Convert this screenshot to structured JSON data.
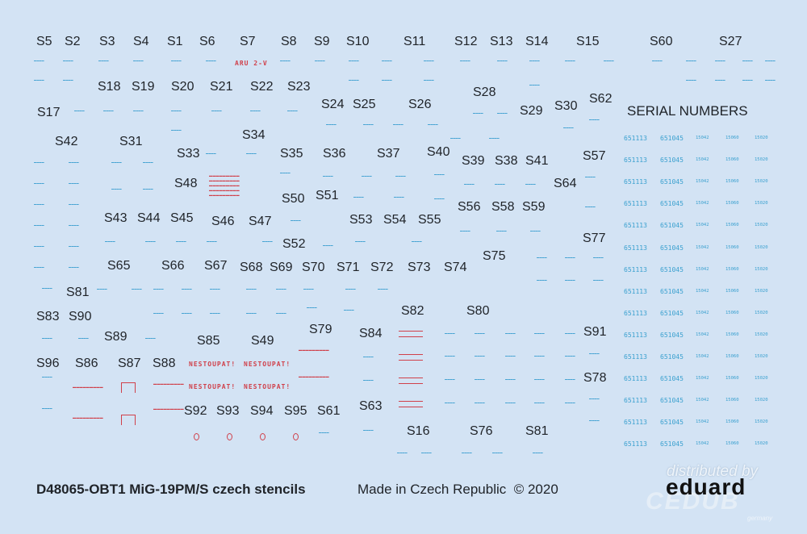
{
  "sheet": {
    "product_title": "D48065-OBT1 MiG-19PM/S czech stencils",
    "made_in": "Made in Czech Republic",
    "copyright": "© 2020",
    "serial_section_title": "SERIAL NUMBERS",
    "watermark": {
      "line1": "distributed by",
      "brand": "eduard",
      "distributor": "CEDUB",
      "country": "germany"
    },
    "colors": {
      "background": "#d3e3f4",
      "label_text": "#1f2328",
      "stencil_blue": "#3a9fd0",
      "stencil_red": "#d0404a"
    }
  },
  "labels": [
    "S5",
    "S2",
    "S3",
    "S4",
    "S1",
    "S6",
    "S7",
    "S8",
    "S9",
    "S10",
    "S11",
    "S12",
    "S13",
    "S14",
    "S15",
    "S60",
    "S27",
    "S18",
    "S19",
    "S20",
    "S21",
    "S22",
    "S23",
    "S17",
    "S24",
    "S25",
    "S26",
    "S28",
    "S29",
    "S30",
    "S62",
    "S34",
    "S42",
    "S31",
    "S33",
    "S35",
    "S36",
    "S37",
    "S40",
    "S39",
    "S38",
    "S41",
    "S57",
    "S48",
    "S64",
    "S50",
    "S51",
    "S56",
    "S58",
    "S59",
    "S43",
    "S44",
    "S45",
    "S46",
    "S47",
    "S53",
    "S54",
    "S55",
    "S77",
    "S52",
    "S75",
    "S65",
    "S66",
    "S67",
    "S68",
    "S69",
    "S70",
    "S71",
    "S72",
    "S73",
    "S74",
    "S81",
    "S83",
    "S90",
    "S82",
    "S80",
    "S79",
    "S89",
    "S85",
    "S49",
    "S84",
    "S91",
    "S96",
    "S86",
    "S87",
    "S88",
    "S78",
    "S92",
    "S93",
    "S94",
    "S95",
    "S61",
    "S63",
    "S16",
    "S76",
    "S81"
  ],
  "red_stencils": {
    "arm_text": "ARU 2-V",
    "warning": "NESTOUPAT!"
  },
  "serial_numbers": {
    "columns": [
      "651113",
      "651045",
      "15042",
      "15060",
      "15020"
    ],
    "rows": 15
  }
}
